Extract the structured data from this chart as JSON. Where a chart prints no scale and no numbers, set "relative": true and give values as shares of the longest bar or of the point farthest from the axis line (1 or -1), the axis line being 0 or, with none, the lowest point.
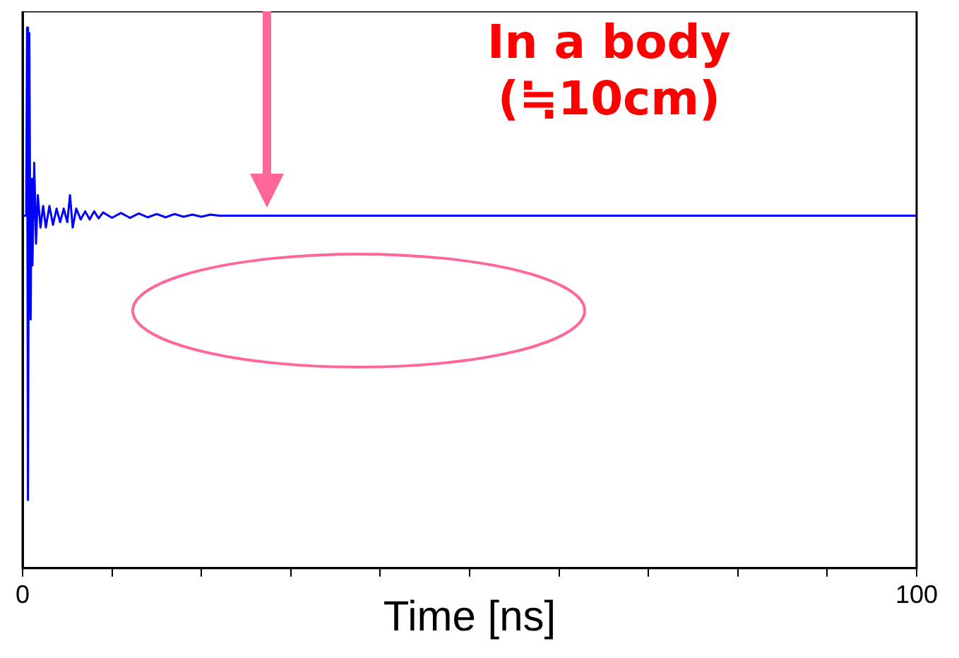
{
  "chart_data": {
    "type": "line",
    "relative": true,
    "xlabel": "Time [ns]",
    "annotations": [
      "In a body\n(≒10cm)"
    ],
    "xlim": [
      0,
      100
    ],
    "xticks": [
      0,
      {
        "value": 10,
        "label": null
      },
      {
        "value": 20,
        "label": null
      },
      {
        "value": 30,
        "label": null
      },
      {
        "value": 40,
        "label": null
      },
      {
        "value": 50,
        "label": null
      },
      {
        "value": 60,
        "label": null
      },
      {
        "value": 70,
        "label": null
      },
      {
        "value": 80,
        "label": null
      },
      {
        "value": 90,
        "label": null
      },
      100
    ],
    "grid": false,
    "legend": false,
    "marker": "none",
    "line_style": "solid",
    "series": [
      {
        "color": "#0000ff",
        "x": [
          0,
          0.4,
          0.5,
          0.6,
          0.75,
          0.9,
          1.0,
          1.1,
          1.3,
          1.5,
          1.7,
          2.0,
          2.3,
          2.6,
          3.0,
          3.4,
          3.8,
          4.2,
          4.6,
          5.0,
          5.3,
          5.6,
          6.0,
          6.5,
          7,
          7.5,
          8,
          8.5,
          9,
          10,
          11,
          12,
          13,
          14,
          15,
          16,
          17,
          18,
          19,
          20,
          21,
          22,
          100
        ],
        "values": [
          0.652,
          0.652,
          1.0,
          0.126,
          0.99,
          0.46,
          0.72,
          0.56,
          0.75,
          0.6,
          0.69,
          0.63,
          0.67,
          0.63,
          0.67,
          0.635,
          0.665,
          0.64,
          0.665,
          0.64,
          0.69,
          0.63,
          0.665,
          0.645,
          0.66,
          0.645,
          0.66,
          0.647,
          0.658,
          0.648,
          0.657,
          0.648,
          0.656,
          0.649,
          0.655,
          0.649,
          0.655,
          0.65,
          0.654,
          0.65,
          0.654,
          0.652,
          0.652
        ]
      }
    ]
  }
}
